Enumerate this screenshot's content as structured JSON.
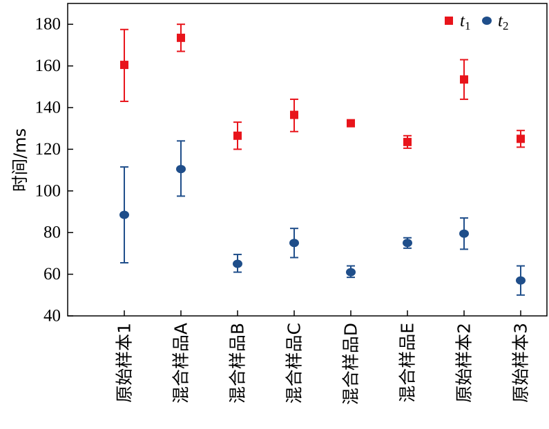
{
  "chart_data": {
    "type": "scatter",
    "ylabel": "时间/ms",
    "xlabel": "",
    "ylim": [
      40,
      190
    ],
    "yticks": [
      40,
      60,
      80,
      100,
      120,
      140,
      160,
      180
    ],
    "categories": [
      "原始样本1",
      "混合样品A",
      "混合样品B",
      "混合样品C",
      "混合样品D",
      "混合样品E",
      "原始样本2",
      "原始样本3"
    ],
    "legend_position": "top-right",
    "grid": false,
    "series": [
      {
        "name": "t",
        "subscript": "1",
        "marker": "square",
        "color": "#e8141b",
        "values": [
          160.5,
          173.5,
          126.5,
          136.5,
          132.5,
          123.5,
          153.5,
          125
        ],
        "err_low": [
          143,
          167,
          120,
          128.5,
          132.5,
          120.5,
          144,
          121
        ],
        "err_high": [
          177.5,
          180,
          133,
          144,
          132.5,
          126.5,
          163,
          129
        ]
      },
      {
        "name": "t",
        "subscript": "2",
        "marker": "circle",
        "color": "#1f4e8a",
        "values": [
          88.5,
          110.5,
          65,
          75,
          61,
          75,
          79.5,
          57
        ],
        "err_low": [
          65.5,
          97.5,
          61,
          68,
          58.5,
          72.5,
          72,
          50
        ],
        "err_high": [
          111.5,
          124,
          69.5,
          82,
          64,
          77.5,
          87,
          64
        ]
      }
    ]
  }
}
